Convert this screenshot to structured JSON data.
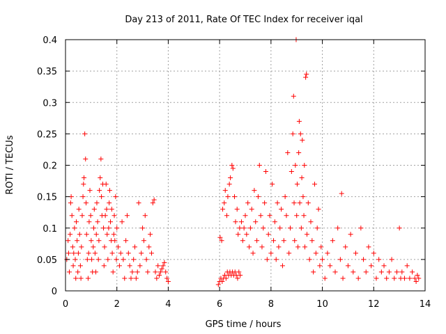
{
  "chart_data": {
    "type": "scatter",
    "title": "Day 213 of 2011, Rate Of TEC Index for receiver iqal",
    "xlabel": "GPS time / hours",
    "ylabel": "ROTI / TECUs",
    "xlim": [
      0,
      14
    ],
    "ylim": [
      0,
      0.4
    ],
    "x_ticks": [
      0,
      2,
      4,
      6,
      8,
      10,
      12,
      14
    ],
    "x_tick_labels": [
      "0",
      "2",
      "4",
      "6",
      "8",
      "10",
      "12",
      "14"
    ],
    "y_ticks": [
      0,
      0.05,
      0.1,
      0.15,
      0.2,
      0.25,
      0.3,
      0.35,
      0.4
    ],
    "y_tick_labels": [
      "0",
      "0.05",
      "0.1",
      "0.15",
      "0.2",
      "0.25",
      "0.3",
      "0.35",
      "0.4"
    ],
    "grid": true,
    "marker": "+",
    "color": "#ff0000",
    "series": [
      {
        "name": "ROTI",
        "points": [
          [
            0.05,
            0.05
          ],
          [
            0.1,
            0.08
          ],
          [
            0.12,
            0.06
          ],
          [
            0.15,
            0.03
          ],
          [
            0.18,
            0.09
          ],
          [
            0.2,
            0.14
          ],
          [
            0.22,
            0.15
          ],
          [
            0.25,
            0.12
          ],
          [
            0.28,
            0.07
          ],
          [
            0.3,
            0.04
          ],
          [
            0.32,
            0.06
          ],
          [
            0.35,
            0.1
          ],
          [
            0.38,
            0.05
          ],
          [
            0.4,
            0.02
          ],
          [
            0.42,
            0.11
          ],
          [
            0.45,
            0.08
          ],
          [
            0.48,
            0.03
          ],
          [
            0.5,
            0.06
          ],
          [
            0.52,
            0.13
          ],
          [
            0.55,
            0.09
          ],
          [
            0.58,
            0.04
          ],
          [
            0.6,
            0.02
          ],
          [
            0.62,
            0.07
          ],
          [
            0.65,
            0.12
          ],
          [
            0.68,
            0.15
          ],
          [
            0.7,
            0.17
          ],
          [
            0.72,
            0.18
          ],
          [
            0.75,
            0.25
          ],
          [
            0.78,
            0.21
          ],
          [
            0.8,
            0.14
          ],
          [
            0.82,
            0.09
          ],
          [
            0.85,
            0.05
          ],
          [
            0.88,
            0.02
          ],
          [
            0.9,
            0.06
          ],
          [
            0.92,
            0.11
          ],
          [
            0.95,
            0.16
          ],
          [
            0.98,
            0.12
          ],
          [
            1.0,
            0.08
          ],
          [
            1.02,
            0.05
          ],
          [
            1.05,
            0.03
          ],
          [
            1.08,
            0.07
          ],
          [
            1.1,
            0.1
          ],
          [
            1.12,
            0.13
          ],
          [
            1.15,
            0.06
          ],
          [
            1.18,
            0.03
          ],
          [
            1.2,
            0.09
          ],
          [
            1.22,
            0.14
          ],
          [
            1.25,
            0.11
          ],
          [
            1.28,
            0.05
          ],
          [
            1.3,
            0.08
          ],
          [
            1.32,
            0.16
          ],
          [
            1.35,
            0.18
          ],
          [
            1.38,
            0.21
          ],
          [
            1.4,
            0.15
          ],
          [
            1.42,
            0.12
          ],
          [
            1.45,
            0.17
          ],
          [
            1.48,
            0.1
          ],
          [
            1.5,
            0.04
          ],
          [
            1.52,
            0.07
          ],
          [
            1.55,
            0.12
          ],
          [
            1.58,
            0.17
          ],
          [
            1.6,
            0.13
          ],
          [
            1.62,
            0.09
          ],
          [
            1.65,
            0.05
          ],
          [
            1.68,
            0.1
          ],
          [
            1.7,
            0.14
          ],
          [
            1.72,
            0.16
          ],
          [
            1.75,
            0.11
          ],
          [
            1.78,
            0.08
          ],
          [
            1.8,
            0.13
          ],
          [
            1.82,
            0.06
          ],
          [
            1.85,
            0.03
          ],
          [
            1.88,
            0.09
          ],
          [
            1.9,
            0.12
          ],
          [
            1.92,
            0.08
          ],
          [
            1.95,
            0.15
          ],
          [
            1.98,
            0.05
          ],
          [
            2.0,
            0.1
          ],
          [
            2.05,
            0.07
          ],
          [
            2.1,
            0.04
          ],
          [
            2.15,
            0.06
          ],
          [
            2.2,
            0.11
          ],
          [
            2.25,
            0.05
          ],
          [
            2.3,
            0.02
          ],
          [
            2.35,
            0.08
          ],
          [
            2.4,
            0.12
          ],
          [
            2.45,
            0.06
          ],
          [
            2.5,
            0.04
          ],
          [
            2.55,
            0.02
          ],
          [
            2.6,
            0.03
          ],
          [
            2.65,
            0.05
          ],
          [
            2.7,
            0.07
          ],
          [
            2.75,
            0.02
          ],
          [
            2.8,
            0.03
          ],
          [
            2.85,
            0.14
          ],
          [
            2.9,
            0.04
          ],
          [
            2.95,
            0.06
          ],
          [
            3.0,
            0.1
          ],
          [
            3.05,
            0.08
          ],
          [
            3.1,
            0.12
          ],
          [
            3.15,
            0.05
          ],
          [
            3.2,
            0.03
          ],
          [
            3.25,
            0.07
          ],
          [
            3.3,
            0.09
          ],
          [
            3.35,
            0.06
          ],
          [
            3.4,
            0.14
          ],
          [
            3.45,
            0.145
          ],
          [
            3.5,
            0.03
          ],
          [
            3.55,
            0.02
          ],
          [
            3.6,
            0.04
          ],
          [
            3.65,
            0.025
          ],
          [
            3.7,
            0.03
          ],
          [
            3.75,
            0.035
          ],
          [
            3.8,
            0.04
          ],
          [
            3.85,
            0.045
          ],
          [
            3.9,
            0.03
          ],
          [
            3.95,
            0.02
          ],
          [
            4.0,
            0.015
          ],
          [
            5.95,
            0.01
          ],
          [
            6.0,
            0.015
          ],
          [
            6.02,
            0.085
          ],
          [
            6.05,
            0.02
          ],
          [
            6.08,
            0.08
          ],
          [
            6.1,
            0.015
          ],
          [
            6.12,
            0.13
          ],
          [
            6.15,
            0.02
          ],
          [
            6.18,
            0.14
          ],
          [
            6.2,
            0.025
          ],
          [
            6.22,
            0.16
          ],
          [
            6.25,
            0.02
          ],
          [
            6.28,
            0.12
          ],
          [
            6.3,
            0.03
          ],
          [
            6.32,
            0.15
          ],
          [
            6.35,
            0.025
          ],
          [
            6.38,
            0.17
          ],
          [
            6.4,
            0.03
          ],
          [
            6.42,
            0.18
          ],
          [
            6.45,
            0.025
          ],
          [
            6.48,
            0.2
          ],
          [
            6.5,
            0.03
          ],
          [
            6.52,
            0.195
          ],
          [
            6.55,
            0.025
          ],
          [
            6.58,
            0.15
          ],
          [
            6.6,
            0.03
          ],
          [
            6.62,
            0.11
          ],
          [
            6.65,
            0.025
          ],
          [
            6.68,
            0.13
          ],
          [
            6.7,
            0.02
          ],
          [
            6.72,
            0.09
          ],
          [
            6.75,
            0.03
          ],
          [
            6.78,
            0.1
          ],
          [
            6.8,
            0.025
          ],
          [
            6.85,
            0.11
          ],
          [
            6.9,
            0.08
          ],
          [
            6.95,
            0.1
          ],
          [
            7.0,
            0.12
          ],
          [
            7.05,
            0.09
          ],
          [
            7.1,
            0.14
          ],
          [
            7.15,
            0.07
          ],
          [
            7.2,
            0.1
          ],
          [
            7.25,
            0.13
          ],
          [
            7.3,
            0.06
          ],
          [
            7.35,
            0.16
          ],
          [
            7.4,
            0.11
          ],
          [
            7.45,
            0.08
          ],
          [
            7.5,
            0.15
          ],
          [
            7.55,
            0.2
          ],
          [
            7.6,
            0.12
          ],
          [
            7.65,
            0.07
          ],
          [
            7.7,
            0.1
          ],
          [
            7.75,
            0.14
          ],
          [
            7.8,
            0.19
          ],
          [
            7.85,
            0.05
          ],
          [
            7.9,
            0.09
          ],
          [
            7.95,
            0.12
          ],
          [
            8.0,
            0.06
          ],
          [
            8.05,
            0.17
          ],
          [
            8.1,
            0.08
          ],
          [
            8.15,
            0.11
          ],
          [
            8.2,
            0.05
          ],
          [
            8.25,
            0.14
          ],
          [
            8.3,
            0.07
          ],
          [
            8.35,
            0.1
          ],
          [
            8.4,
            0.13
          ],
          [
            8.45,
            0.04
          ],
          [
            8.5,
            0.08
          ],
          [
            8.55,
            0.15
          ],
          [
            8.6,
            0.12
          ],
          [
            8.65,
            0.22
          ],
          [
            8.7,
            0.06
          ],
          [
            8.75,
            0.1
          ],
          [
            8.8,
            0.19
          ],
          [
            8.85,
            0.25
          ],
          [
            8.88,
            0.31
          ],
          [
            8.9,
            0.14
          ],
          [
            8.92,
            0.08
          ],
          [
            8.95,
            0.2
          ],
          [
            8.98,
            0.4
          ],
          [
            9.0,
            0.12
          ],
          [
            9.02,
            0.17
          ],
          [
            9.05,
            0.07
          ],
          [
            9.08,
            0.22
          ],
          [
            9.1,
            0.27
          ],
          [
            9.12,
            0.14
          ],
          [
            9.15,
            0.25
          ],
          [
            9.18,
            0.1
          ],
          [
            9.2,
            0.18
          ],
          [
            9.22,
            0.24
          ],
          [
            9.25,
            0.15
          ],
          [
            9.28,
            0.12
          ],
          [
            9.3,
            0.2
          ],
          [
            9.32,
            0.07
          ],
          [
            9.35,
            0.34
          ],
          [
            9.38,
            0.345
          ],
          [
            9.4,
            0.09
          ],
          [
            9.45,
            0.14
          ],
          [
            9.5,
            0.05
          ],
          [
            9.55,
            0.11
          ],
          [
            9.6,
            0.08
          ],
          [
            9.65,
            0.03
          ],
          [
            9.7,
            0.17
          ],
          [
            9.75,
            0.06
          ],
          [
            9.8,
            0.1
          ],
          [
            9.85,
            0.13
          ],
          [
            9.9,
            0.04
          ],
          [
            9.95,
            0.07
          ],
          [
            10.0,
            0.05
          ],
          [
            10.1,
            0.02
          ],
          [
            10.2,
            0.06
          ],
          [
            10.3,
            0.04
          ],
          [
            10.4,
            0.08
          ],
          [
            10.5,
            0.03
          ],
          [
            10.6,
            0.1
          ],
          [
            10.7,
            0.05
          ],
          [
            10.75,
            0.155
          ],
          [
            10.8,
            0.02
          ],
          [
            10.9,
            0.07
          ],
          [
            11.0,
            0.04
          ],
          [
            11.1,
            0.09
          ],
          [
            11.2,
            0.03
          ],
          [
            11.3,
            0.06
          ],
          [
            11.4,
            0.02
          ],
          [
            11.5,
            0.1
          ],
          [
            11.6,
            0.05
          ],
          [
            11.7,
            0.03
          ],
          [
            11.8,
            0.07
          ],
          [
            11.9,
            0.04
          ],
          [
            12.0,
            0.06
          ],
          [
            12.1,
            0.02
          ],
          [
            12.2,
            0.05
          ],
          [
            12.3,
            0.03
          ],
          [
            12.4,
            0.04
          ],
          [
            12.5,
            0.02
          ],
          [
            12.6,
            0.03
          ],
          [
            12.7,
            0.05
          ],
          [
            12.8,
            0.02
          ],
          [
            12.9,
            0.03
          ],
          [
            13.0,
            0.1
          ],
          [
            13.05,
            0.02
          ],
          [
            13.1,
            0.03
          ],
          [
            13.2,
            0.02
          ],
          [
            13.3,
            0.04
          ],
          [
            13.4,
            0.02
          ],
          [
            13.5,
            0.03
          ],
          [
            13.6,
            0.02
          ],
          [
            13.65,
            0.015
          ],
          [
            13.7,
            0.025
          ],
          [
            13.75,
            0.02
          ]
        ]
      }
    ]
  }
}
